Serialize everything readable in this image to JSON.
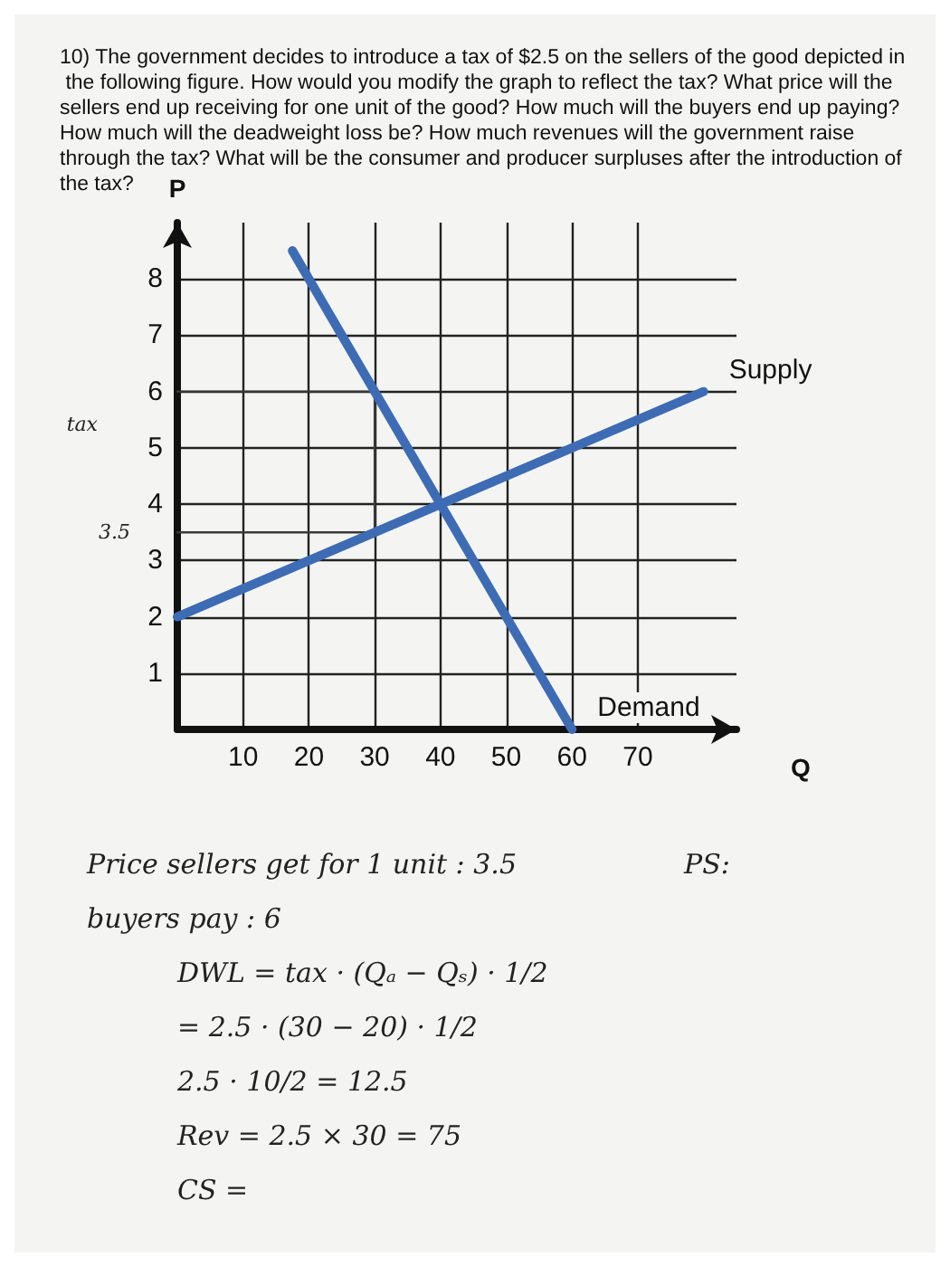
{
  "chart_data": {
    "type": "line",
    "title": "10) The government decides to introduce a tax of $2.5 on the sellers of the good depicted in the following figure. How would you modify the graph to reflect the tax? What price will the sellers end up receiving for one unit of the good? How much will the buyers end up paying? How much will the deadweight loss be? How much revenues will the government raise through the tax? What will be the consumer and producer surpluses after the introduction of the tax?",
    "xlabel": "Q",
    "ylabel": "P",
    "xlim": [
      0,
      85
    ],
    "ylim": [
      0,
      9
    ],
    "xticks": [
      10,
      20,
      30,
      40,
      50,
      60,
      70
    ],
    "yticks": [
      1,
      2,
      3,
      4,
      5,
      6,
      7,
      8
    ],
    "grid": true,
    "marker": "none",
    "line_style": "solid",
    "series": [
      {
        "name": "Supply",
        "color": "#3d6cb4",
        "x": [
          0,
          80
        ],
        "values": [
          2,
          6
        ]
      },
      {
        "name": "Demand",
        "color": "#3d6cb4",
        "x": [
          17.5,
          60
        ],
        "values": [
          8.5,
          0
        ]
      },
      {
        "color": "#3a3a3a",
        "x": [
          0,
          30,
          30,
          0
        ],
        "values": [
          6,
          6,
          3.5,
          3.5
        ]
      }
    ],
    "annotations": [
      "tax",
      {
        "text": "3.5",
        "x": 0,
        "y": 3.5
      },
      "Price sellers get for 1 unit : 3.5",
      "PS:",
      "buyers pay : 6",
      "DWL = tax · (Qₐ − Qₛ) · 1/2",
      "= 2.5 · (30 − 20) · 1/2",
      "2.5 · 10/2 = 12.5",
      "Rev = 2.5 × 30 = 75",
      "CS ="
    ]
  }
}
